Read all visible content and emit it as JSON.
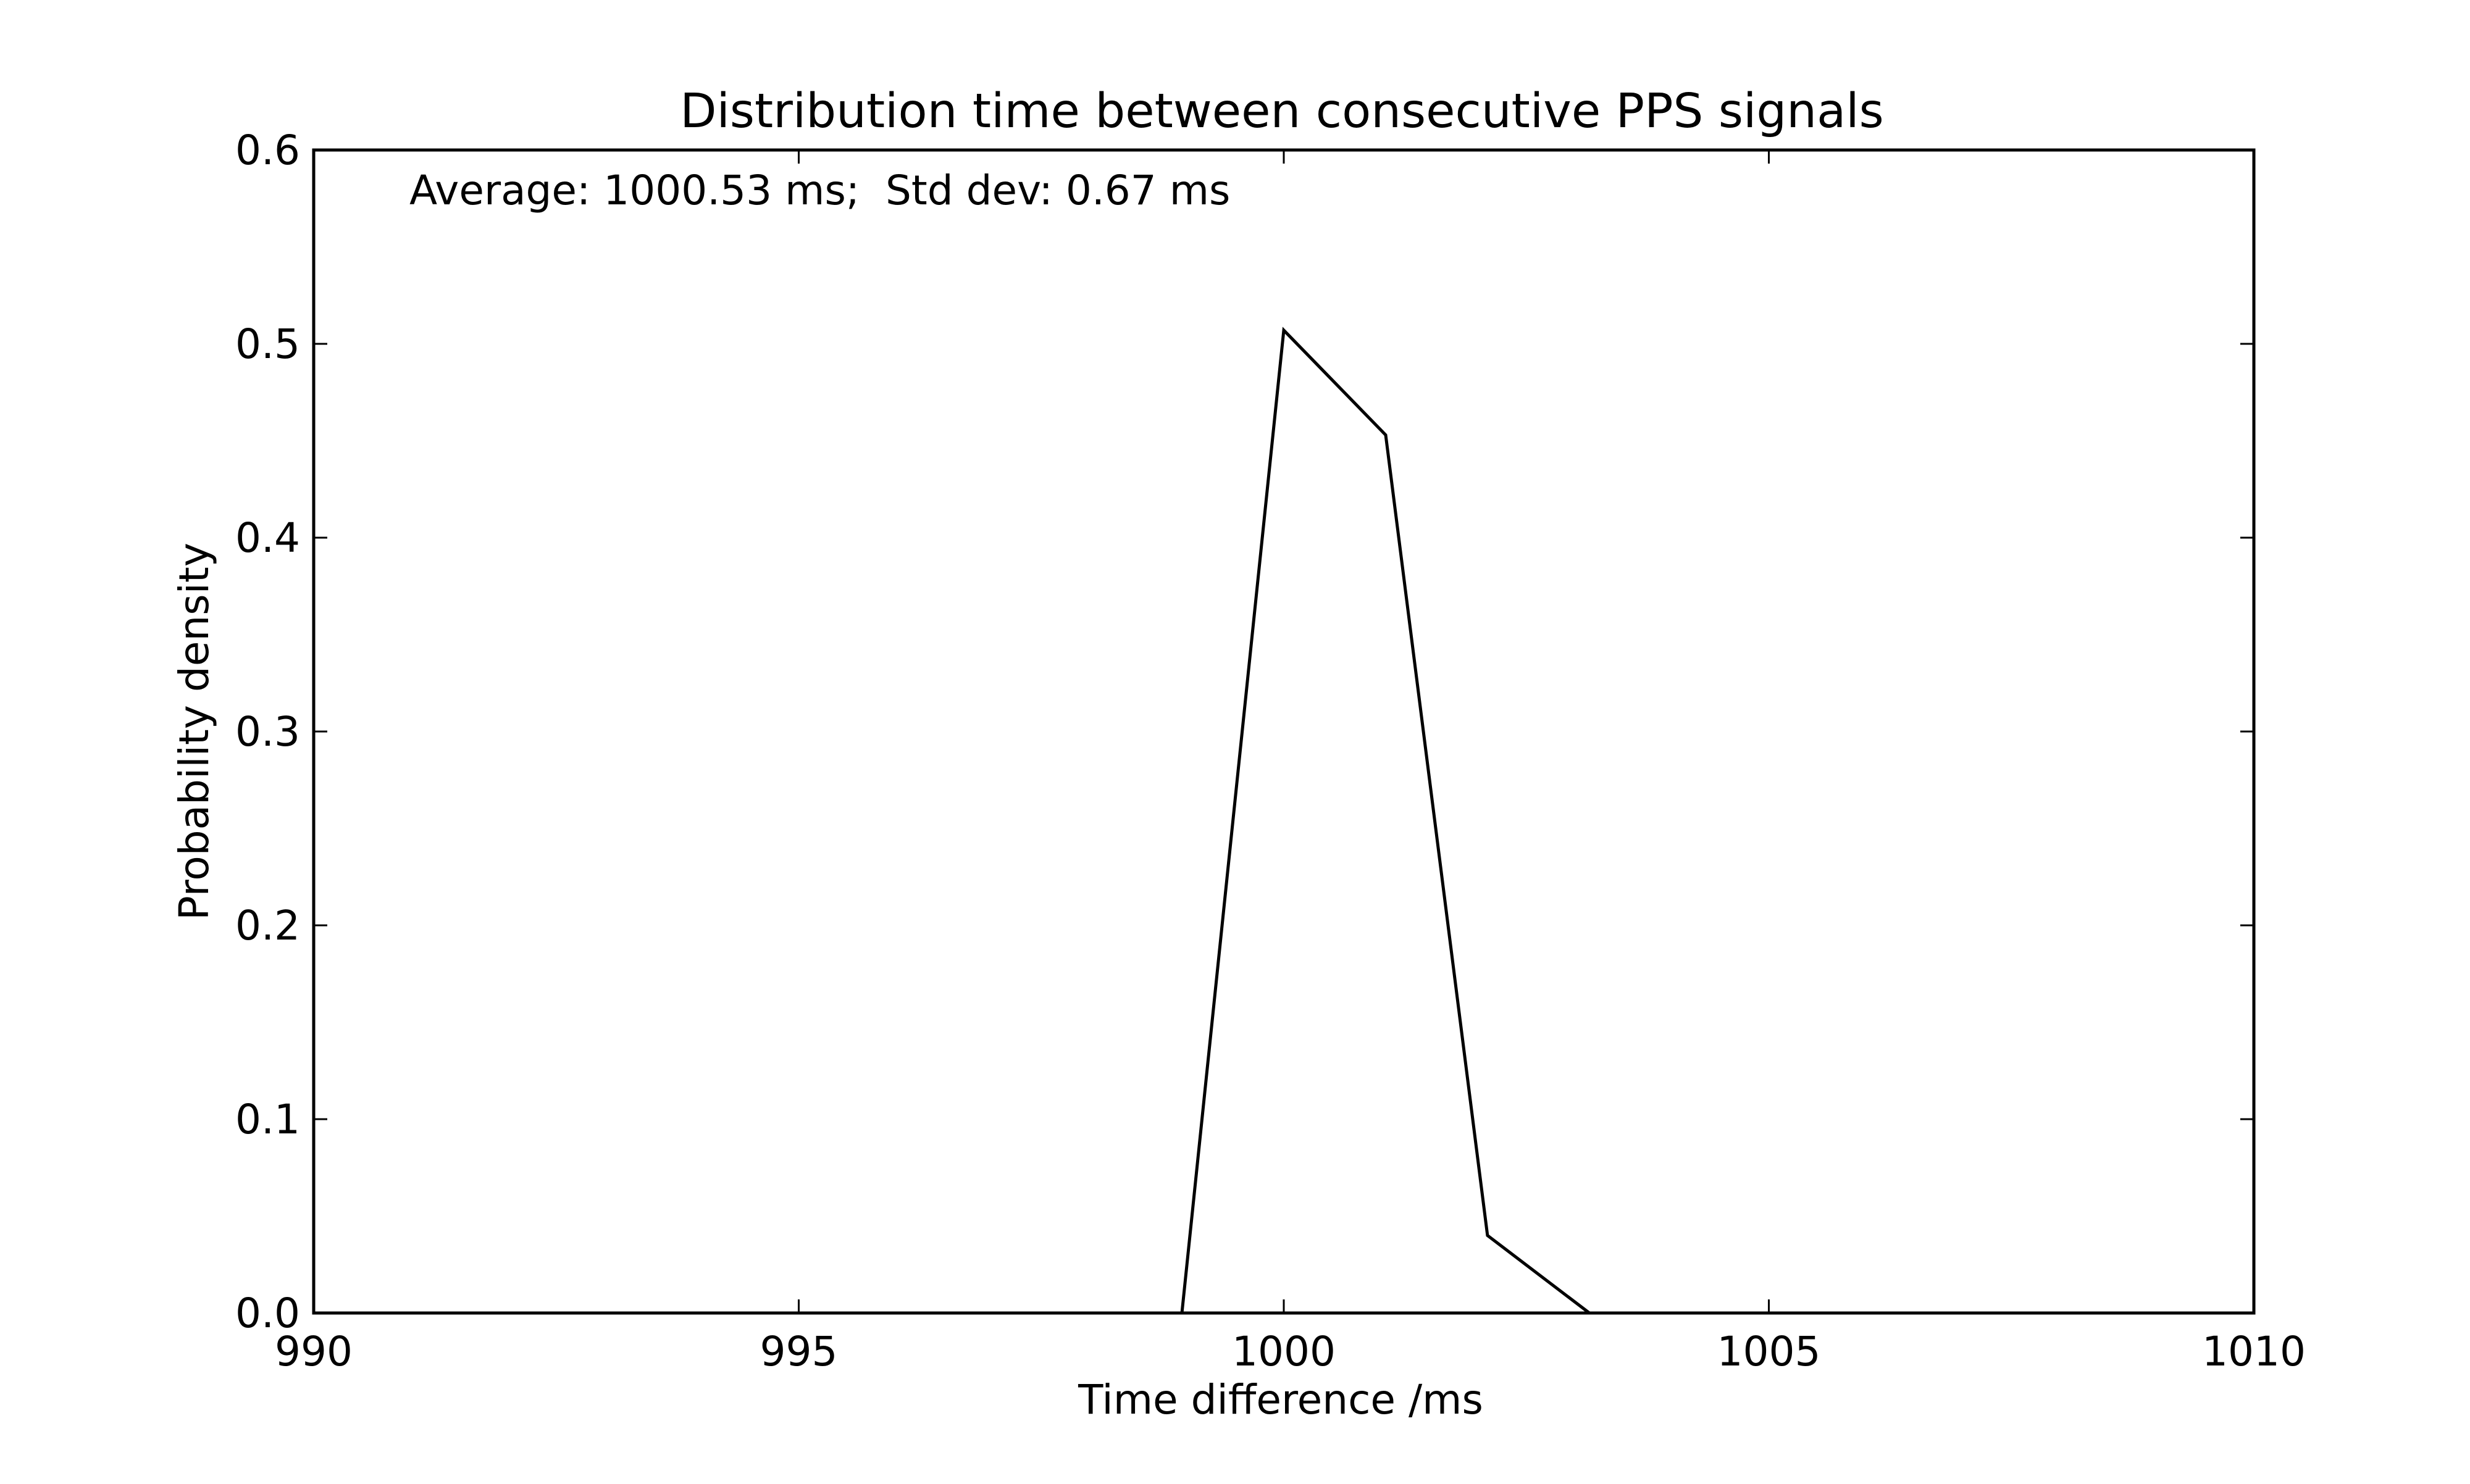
{
  "chart_data": {
    "type": "line",
    "title": "Distribution time between consecutive PPS signals",
    "xlabel": "Time difference /ms",
    "ylabel": "Probability density",
    "xlim": [
      990,
      1010
    ],
    "ylim": [
      0,
      0.6
    ],
    "xticks": [
      990,
      995,
      1000,
      1005,
      1010
    ],
    "xtick_labels": [
      "990",
      "995",
      "1000",
      "1005",
      "1010"
    ],
    "yticks": [
      0.0,
      0.1,
      0.2,
      0.3,
      0.4,
      0.5,
      0.6
    ],
    "ytick_labels": [
      "0.0",
      "0.1",
      "0.2",
      "0.3",
      "0.4",
      "0.5",
      "0.6"
    ],
    "grid": false,
    "annotation": "Average: 1000.53 ms;  Std dev: 0.67 ms",
    "series": [
      {
        "color": "#000000",
        "x": [
          990,
          998.95,
          1000.0,
          1001.05,
          1002.1,
          1003.15,
          1010
        ],
        "y": [
          0.0,
          0.0,
          0.507,
          0.453,
          0.04,
          0.0,
          0.0
        ]
      }
    ]
  }
}
